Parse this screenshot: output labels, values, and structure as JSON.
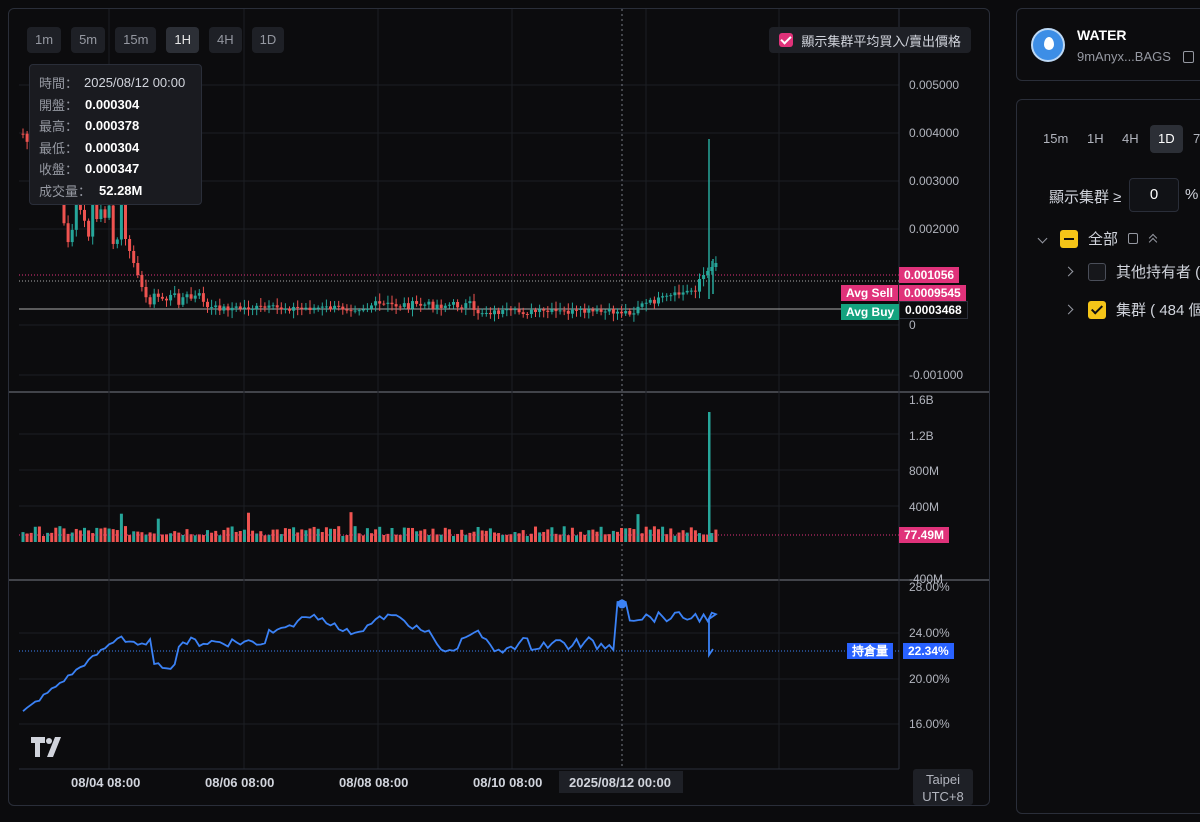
{
  "timeframes": [
    "1m",
    "5m",
    "15m",
    "1H",
    "4H",
    "1D"
  ],
  "active_timeframe": "1H",
  "cluster_toggle_label": "顯示集群平均買入/賣出價格",
  "tooltip": {
    "time_label": "時間：",
    "time_value": "2025/08/12 00:00",
    "open_label": "開盤：",
    "open_value": "0.000304",
    "high_label": "最高：",
    "high_value": "0.000378",
    "low_label": "最低：",
    "low_value": "0.000304",
    "close_label": "收盤：",
    "close_value": "0.000347",
    "volume_label": "成交量：",
    "volume_value": "52.28M"
  },
  "price_axis": [
    "0.005000",
    "0.004000",
    "0.003000",
    "0.002000",
    "0",
    "-0.001000"
  ],
  "volume_axis": [
    "1.6B",
    "1.2B",
    "800M",
    "400M",
    "-400M"
  ],
  "holding_axis": [
    "28.00%",
    "24.00%",
    "20.00%",
    "16.00%"
  ],
  "tags": {
    "last_price": "0.001056",
    "avg_sell_label": "Avg Sell",
    "avg_sell_value": "0.0009545",
    "avg_buy_label": "Avg Buy",
    "avg_buy_value": "0.0003468",
    "volume_last": "77.49M",
    "holding_label": "持倉量",
    "holding_value": "22.34%"
  },
  "date_labels": [
    "08/04 08:00",
    "08/06 08:00",
    "08/08 08:00",
    "08/10 08:00"
  ],
  "crosshair_date": "2025/08/12 00:00",
  "timezone": {
    "line1": "Taipei",
    "line2": "UTC+8"
  },
  "token": {
    "name": "WATER",
    "address": "9mAnyx...BAGS"
  },
  "right_timeframes": [
    "15m",
    "1H",
    "4H",
    "1D",
    "7"
  ],
  "right_active_timeframe": "1D",
  "cluster_filter_label": "顯示集群 ≥",
  "cluster_filter_value": "0",
  "cluster_filter_unit": "%",
  "tree": {
    "all_label": "全部",
    "other_holders_label": "其他持有者 (",
    "clusters_label": "集群 ( 484 個"
  },
  "colors": {
    "up": "#26a69a",
    "down": "#ef5350",
    "accent_pink": "#e0327a",
    "accent_green": "#14a37f",
    "holding_line": "#3b82f6"
  }
}
